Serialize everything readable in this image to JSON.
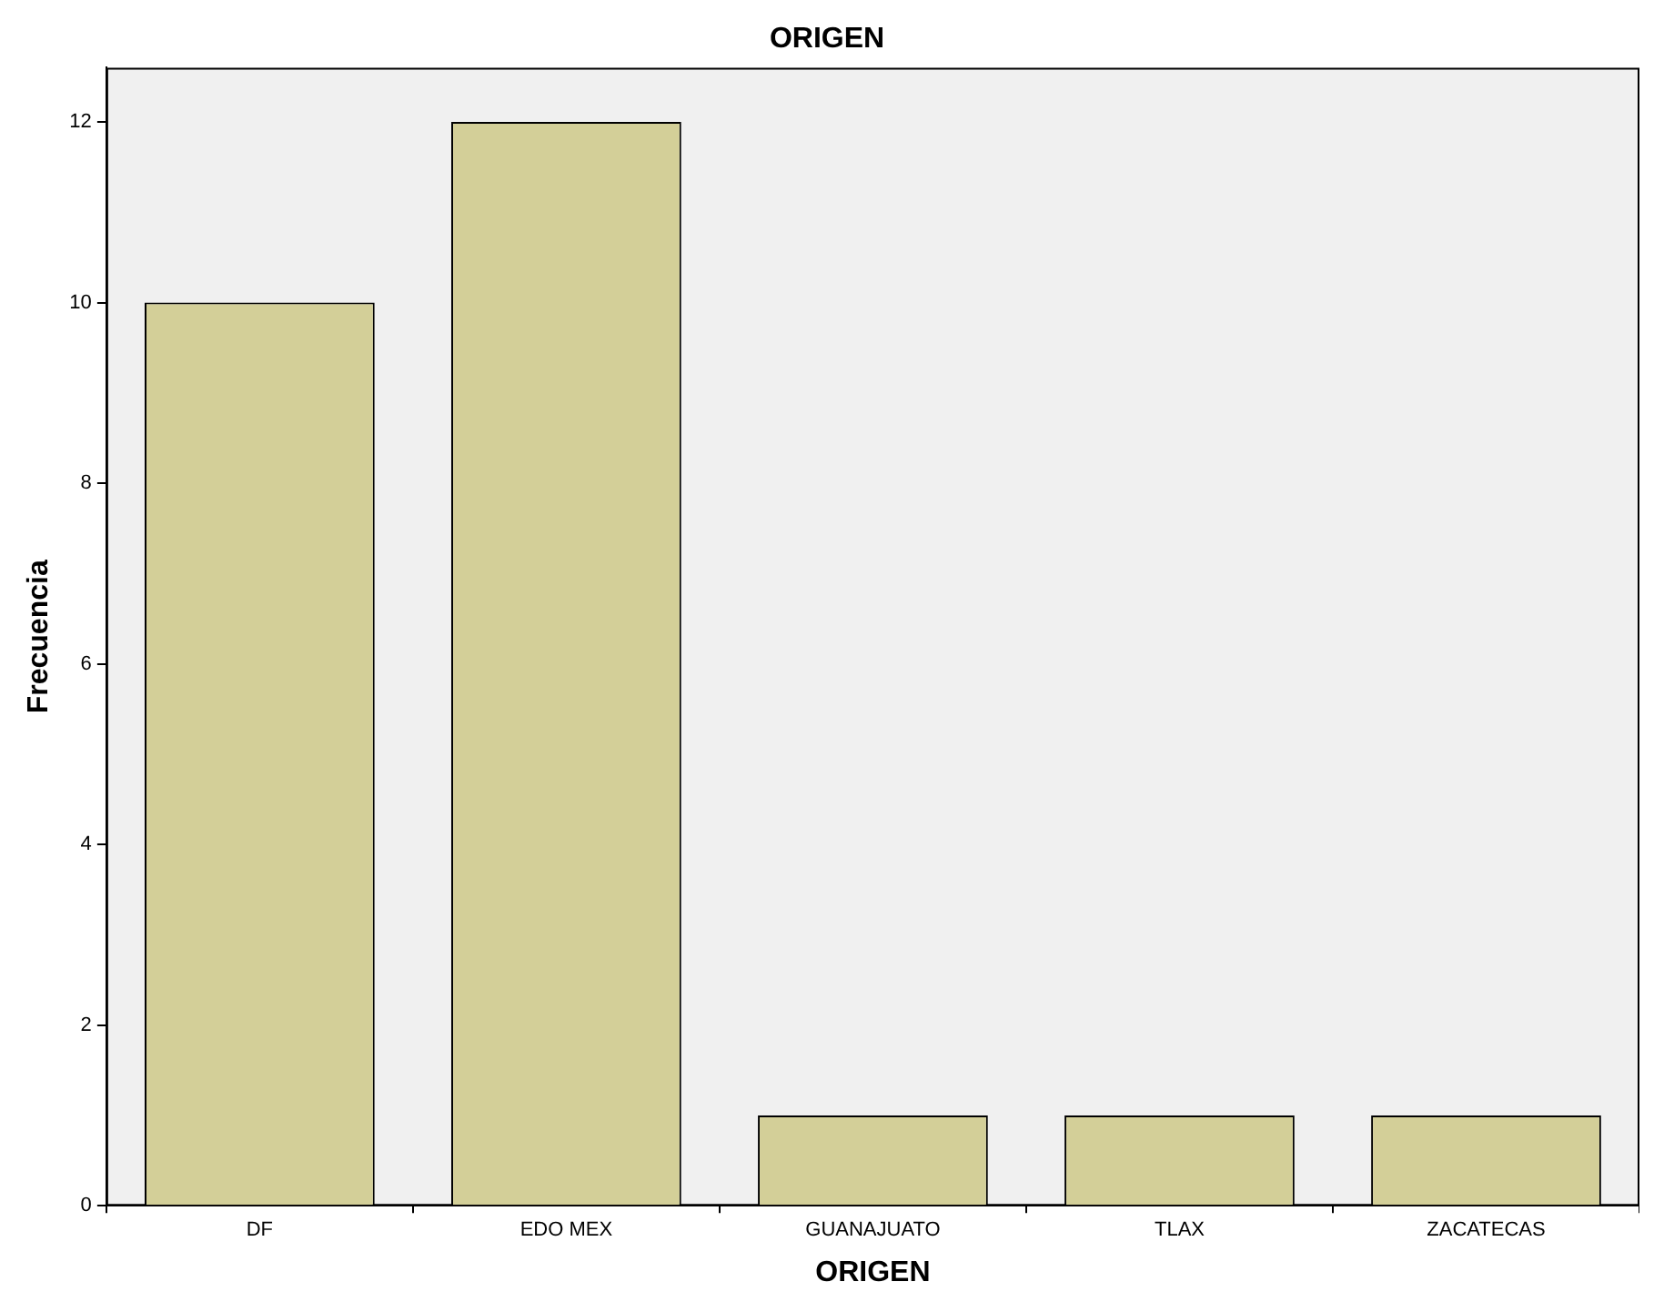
{
  "chart_data": {
    "type": "bar",
    "title": "ORIGEN",
    "xlabel": "ORIGEN",
    "ylabel": "Frecuencia",
    "categories": [
      "DF",
      "EDO MEX",
      "GUANAJUATO",
      "TLAX",
      "ZACATECAS"
    ],
    "values": [
      10,
      12,
      1,
      1,
      1
    ],
    "color": "#d3cf98",
    "ylim": [
      0,
      12.6
    ],
    "yticks": [
      0,
      2,
      4,
      6,
      8,
      10,
      12
    ]
  }
}
